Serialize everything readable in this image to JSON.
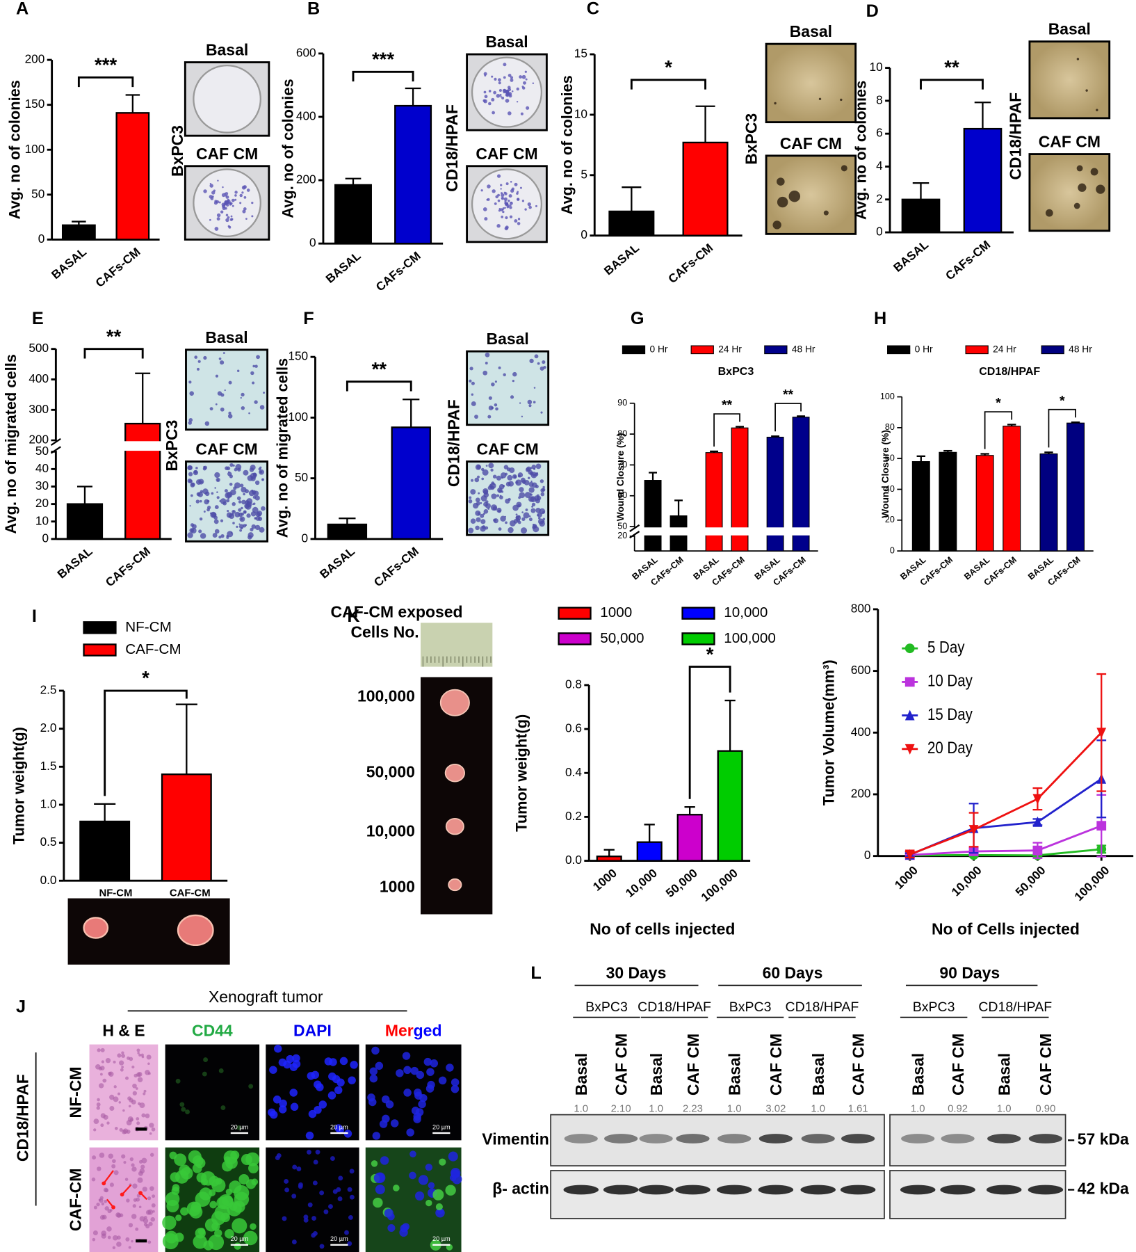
{
  "chart_data": [
    {
      "panel": "A",
      "type": "bar",
      "ylabel": "Avg. no of colonies",
      "categories": [
        "BASAL",
        "CAFs-CM"
      ],
      "values": [
        16,
        141
      ],
      "errors": [
        4,
        20
      ],
      "colors": [
        "#000000",
        "#ff0000"
      ],
      "ylim": [
        0,
        200
      ],
      "yticks": [
        0,
        50,
        100,
        150,
        200
      ],
      "annotation": "***",
      "image_labels": [
        "Basal",
        "CAF CM"
      ],
      "cell_line": "BxPC3"
    },
    {
      "panel": "B",
      "type": "bar",
      "ylabel": "Avg. no of colonies",
      "categories": [
        "BASAL",
        "CAFs-CM"
      ],
      "values": [
        185,
        435
      ],
      "errors": [
        20,
        55
      ],
      "colors": [
        "#000000",
        "#0000cd"
      ],
      "ylim": [
        0,
        600
      ],
      "yticks": [
        0,
        200,
        400,
        600
      ],
      "annotation": "***",
      "image_labels": [
        "Basal",
        "CAF CM"
      ],
      "cell_line": "CD18/HPAF"
    },
    {
      "panel": "C",
      "type": "bar",
      "ylabel": "Avg. no of colonies",
      "categories": [
        "BASAL",
        "CAFs-CM"
      ],
      "values": [
        2,
        7.7
      ],
      "errors": [
        2,
        3
      ],
      "colors": [
        "#000000",
        "#ff0000"
      ],
      "ylim": [
        0,
        15
      ],
      "yticks": [
        0,
        5,
        10,
        15
      ],
      "annotation": "*",
      "image_labels": [
        "Basal",
        "CAF CM"
      ],
      "cell_line": "BxPC3"
    },
    {
      "panel": "D",
      "type": "bar",
      "ylabel": "Avg. no of colonies",
      "categories": [
        "BASAL",
        "CAFs-CM"
      ],
      "values": [
        2,
        6.3
      ],
      "errors": [
        1,
        1.6
      ],
      "colors": [
        "#000000",
        "#0000cc"
      ],
      "ylim": [
        0,
        10
      ],
      "yticks": [
        0,
        2,
        4,
        6,
        8,
        10
      ],
      "annotation": "**",
      "image_labels": [
        "Basal",
        "CAF CM"
      ],
      "cell_line": "CD18/HPAF"
    },
    {
      "panel": "E",
      "type": "bar",
      "ylabel": "Avg. no of migrated cells",
      "categories": [
        "BASAL",
        "CAFs-CM"
      ],
      "values": [
        20,
        255
      ],
      "errors": [
        10,
        165
      ],
      "colors": [
        "#000000",
        "#ff0000"
      ],
      "ylim": [
        0,
        500
      ],
      "ybreak": [
        50,
        200
      ],
      "yticks": [
        0,
        10,
        20,
        30,
        40,
        50,
        200,
        300,
        400,
        500
      ],
      "annotation": "**",
      "image_labels": [
        "Basal",
        "CAF CM"
      ],
      "cell_line": "BxPC3"
    },
    {
      "panel": "F",
      "type": "bar",
      "ylabel": "Avg. no of migrated cells",
      "categories": [
        "BASAL",
        "CAFs-CM"
      ],
      "values": [
        12,
        92
      ],
      "errors": [
        5,
        23
      ],
      "colors": [
        "#000000",
        "#0000cd"
      ],
      "ylim": [
        0,
        150
      ],
      "yticks": [
        0,
        50,
        100,
        150
      ],
      "annotation": "**",
      "image_labels": [
        "Basal",
        "CAF CM"
      ],
      "cell_line": "CD18/HPAF"
    },
    {
      "panel": "G",
      "type": "grouped_bar",
      "subtitle": "BxPC3",
      "ylabel": "Wound Closure (%)",
      "categories": [
        "BASAL",
        "CAFs-CM"
      ],
      "series": [
        {
          "name": "0 Hr",
          "color": "#000000",
          "values": [
            65,
            53.5
          ],
          "errors": [
            2.5,
            5
          ]
        },
        {
          "name": "24 Hr",
          "color": "#ff0000",
          "values": [
            74,
            82
          ],
          "errors": [
            0.4,
            0.4
          ],
          "annotation": "**"
        },
        {
          "name": "48 Hr",
          "color": "#00008b",
          "values": [
            79,
            85.5
          ],
          "errors": [
            0.3,
            0.3
          ],
          "annotation": "**"
        }
      ],
      "ylim": [
        0,
        90
      ],
      "ybreak": [
        20,
        50
      ],
      "yticks": [
        20,
        50,
        60,
        70,
        80,
        90
      ]
    },
    {
      "panel": "H",
      "type": "grouped_bar",
      "subtitle": "CD18/HPAF",
      "ylabel": "Wound Closure (%)",
      "categories": [
        "BASAL",
        "CAFs-CM"
      ],
      "series": [
        {
          "name": "0 Hr",
          "color": "#000000",
          "values": [
            58,
            64
          ],
          "errors": [
            3.5,
            1
          ]
        },
        {
          "name": "24 Hr",
          "color": "#ff0000",
          "values": [
            62,
            81
          ],
          "errors": [
            1,
            1
          ],
          "annotation": "*"
        },
        {
          "name": "48 Hr",
          "color": "#000080",
          "values": [
            63,
            83
          ],
          "errors": [
            1,
            0.5
          ],
          "annotation": "*"
        }
      ],
      "ylim": [
        0,
        100
      ],
      "yticks": [
        0,
        20,
        40,
        60,
        80,
        100
      ]
    },
    {
      "panel": "I",
      "type": "bar",
      "ylabel": "Tumor weight(g)",
      "categories": [
        "NF-CM",
        "CAF-CM"
      ],
      "values": [
        0.78,
        1.4
      ],
      "errors": [
        0.23,
        0.92
      ],
      "colors": [
        "#000000",
        "#ff0000"
      ],
      "ylim": [
        0,
        2.5
      ],
      "yticks": [
        {
          "value": 0,
          "label": "0.0"
        },
        0.5,
        {
          "value": 1,
          "label": "1.0"
        },
        1.5,
        {
          "value": 2,
          "label": "2.0"
        },
        2.5
      ],
      "annotation": "*",
      "legend": true
    },
    {
      "panel": "K",
      "type": "bar",
      "ylabel": "Tumor weight(g)",
      "xlabel": "No of cells injected",
      "categories": [
        "1000",
        "10,000",
        "50,000",
        "100,000"
      ],
      "values": [
        0.02,
        0.085,
        0.21,
        0.5
      ],
      "errors": [
        0.03,
        0.08,
        0.035,
        0.23
      ],
      "colors": [
        "#ff0000",
        "#0000ff",
        "#cc00cc",
        "#00cc00"
      ],
      "ylim": [
        0,
        0.8
      ],
      "yticks": [
        {
          "value": 0,
          "label": "0.0"
        },
        0.2,
        0.4,
        0.6,
        0.8
      ],
      "annotation": "*",
      "legend": true,
      "photo_title": [
        "CAF-CM exposed",
        "Cells No."
      ]
    },
    {
      "type": "line",
      "ylabel": "Tumor Volume(mm³)",
      "xlabel": "No of Cells injected",
      "categories": [
        "1000",
        "10,000",
        "50,000",
        "100,000"
      ],
      "series": [
        {
          "name": "5 Day",
          "color": "#22bb22",
          "marker": "circle",
          "values": [
            2,
            3,
            2,
            22
          ],
          "errors": [
            4,
            5,
            5,
            12
          ]
        },
        {
          "name": "10 Day",
          "color": "#bb33dd",
          "marker": "square",
          "values": [
            3,
            15,
            18,
            98
          ],
          "errors": [
            5,
            10,
            25,
            100
          ]
        },
        {
          "name": "15 Day",
          "color": "#2222cc",
          "marker": "triangle-up",
          "values": [
            4,
            90,
            110,
            250
          ],
          "errors": [
            5,
            80,
            10,
            125
          ]
        },
        {
          "name": "20 Day",
          "color": "#ee1111",
          "marker": "triangle-down",
          "values": [
            5,
            85,
            185,
            400
          ],
          "errors": [
            10,
            55,
            35,
            190
          ]
        }
      ],
      "ylim": [
        0,
        800
      ],
      "yticks": [
        0,
        200,
        400,
        600,
        800
      ],
      "legend": true
    }
  ],
  "histology": {
    "panel": "J",
    "title": "Xenograft tumor",
    "columns": [
      "H & E",
      "CD44",
      "DAPI",
      "Merged"
    ],
    "cell_line": "CD18/HPAF",
    "rows": [
      "NF-CM",
      "CAF-CM"
    ],
    "scale_label": "20 µm"
  },
  "western_blot": {
    "panel": "L",
    "timepoints": [
      "30 Days",
      "60 Days",
      "90 Days"
    ],
    "cell_lines": [
      "BxPC3",
      "CD18/HPAF"
    ],
    "lanes": [
      "Basal",
      "CAF CM"
    ],
    "ratios": [
      "1.0",
      "2.10",
      "1.0",
      "2.23",
      "1.0",
      "3.02",
      "1.0",
      "1.61",
      "1.0",
      "0.92",
      "1.0",
      "0.90"
    ],
    "proteins": [
      "Vimentin",
      "β- actin"
    ],
    "sizes": [
      "57 kDa",
      "42 kDa"
    ]
  }
}
